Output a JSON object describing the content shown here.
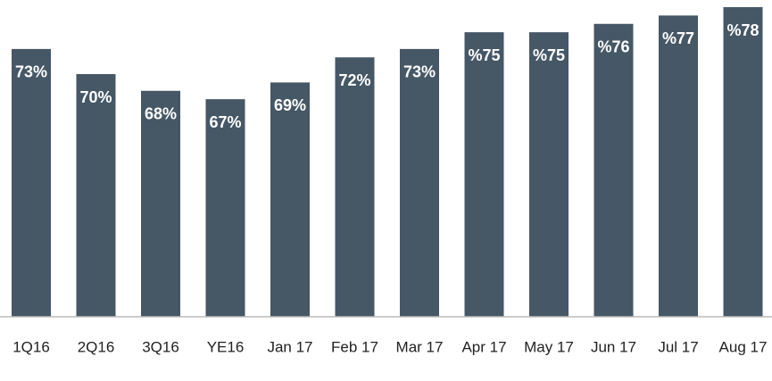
{
  "chart_data": {
    "type": "bar",
    "categories": [
      "1Q16",
      "2Q16",
      "3Q16",
      "YE16",
      "Jan 17",
      "Feb 17",
      "Mar 17",
      "Apr 17",
      "May 17",
      "Jun 17",
      "Jul 17",
      "Aug 17"
    ],
    "values": [
      73,
      70,
      68,
      67,
      69,
      72,
      73,
      75,
      75,
      76,
      77,
      78
    ],
    "value_labels": [
      "73%",
      "70%",
      "68%",
      "67%",
      "69%",
      "72%",
      "73%",
      "%75",
      "%75",
      "%76",
      "%77",
      "%78"
    ],
    "color": "#465766",
    "ylim": [
      41,
      78
    ]
  }
}
